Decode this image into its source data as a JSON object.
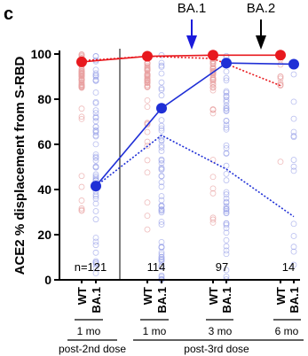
{
  "panel_label": "c",
  "chart_data": {
    "type": "scatter",
    "ylabel": "ACE2 % displacement from S-RBD",
    "ylim": [
      0,
      100
    ],
    "yticks": [
      0,
      20,
      40,
      60,
      80,
      100
    ],
    "grid": false,
    "groups": [
      {
        "tick_labels": [
          "WT",
          "BA.1"
        ],
        "timepoint": "1 mo",
        "n_label": "n=121"
      },
      {
        "tick_labels": [
          "WT",
          "BA.1"
        ],
        "timepoint": "1 mo",
        "n_label": "114"
      },
      {
        "tick_labels": [
          "WT",
          "BA.1"
        ],
        "timepoint": "3 mo",
        "n_label": "97"
      },
      {
        "tick_labels": [
          "WT",
          "BA.1"
        ],
        "timepoint": "6 mo",
        "n_label": "14"
      }
    ],
    "periods": [
      "post-2nd dose",
      "post-3rd dose"
    ],
    "annotations": [
      {
        "text": "BA.1",
        "color": "#1a1adb"
      },
      {
        "text": "BA.2",
        "color": "#000000"
      }
    ],
    "series": [
      {
        "color": "#e8191e",
        "style": "solid",
        "values": [
          96.5,
          99,
          99.5,
          99.5
        ]
      },
      {
        "color": "#e8191e",
        "style": "dotted",
        "values": [
          97,
          99,
          98,
          86
        ]
      },
      {
        "color": "#1f2fd6",
        "style": "solid",
        "values": [
          41.5,
          76,
          96,
          95.5
        ]
      },
      {
        "color": "#1f2fd6",
        "style": "dotted",
        "values": [
          41.5,
          64,
          49,
          28
        ]
      }
    ]
  }
}
